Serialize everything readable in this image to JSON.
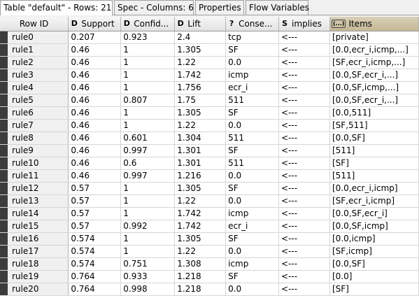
{
  "tabs": [
    {
      "label": "Table \"default\" - Rows: 21",
      "active": true
    },
    {
      "label": "Spec - Columns: 6",
      "active": false
    },
    {
      "label": "Properties",
      "active": false
    },
    {
      "label": "Flow Variables",
      "active": false
    }
  ],
  "columns": [
    {
      "label": "Row ID",
      "type_icon": "",
      "type_name": "row-id"
    },
    {
      "label": "Support",
      "type_icon": "D",
      "type_name": "double-type-icon"
    },
    {
      "label": "Confid...",
      "type_icon": "D",
      "type_name": "double-type-icon"
    },
    {
      "label": "Lift",
      "type_icon": "D",
      "type_name": "double-type-icon"
    },
    {
      "label": "Conse...",
      "type_icon": "?",
      "type_name": "unknown-type-icon"
    },
    {
      "label": "implies",
      "type_icon": "S",
      "type_name": "string-type-icon"
    },
    {
      "label": "Items",
      "type_icon": "(...)",
      "type_name": "list-type-icon"
    }
  ],
  "rows": [
    [
      "rule0",
      "0.207",
      "0.923",
      "2.4",
      "tcp",
      "<---",
      "[private]"
    ],
    [
      "rule1",
      "0.46",
      "1",
      "1.305",
      "SF",
      "<---",
      "[0.0,ecr_i,icmp,...]"
    ],
    [
      "rule2",
      "0.46",
      "1",
      "1.22",
      "0.0",
      "<---",
      "[SF,ecr_i,icmp,...]"
    ],
    [
      "rule3",
      "0.46",
      "1",
      "1.742",
      "icmp",
      "<---",
      "[0.0,SF,ecr_i,...]"
    ],
    [
      "rule4",
      "0.46",
      "1",
      "1.756",
      "ecr_i",
      "<---",
      "[0.0,SF,icmp,...]"
    ],
    [
      "rule5",
      "0.46",
      "0.807",
      "1.75",
      "511",
      "<---",
      "[0.0,SF,ecr_i,...]"
    ],
    [
      "rule6",
      "0.46",
      "1",
      "1.305",
      "SF",
      "<---",
      "[0.0,511]"
    ],
    [
      "rule7",
      "0.46",
      "1",
      "1.22",
      "0.0",
      "<---",
      "[SF,511]"
    ],
    [
      "rule8",
      "0.46",
      "0.601",
      "1.304",
      "511",
      "<---",
      "[0.0,SF]"
    ],
    [
      "rule9",
      "0.46",
      "0.997",
      "1.301",
      "SF",
      "<---",
      "[511]"
    ],
    [
      "rule10",
      "0.46",
      "0.6",
      "1.301",
      "511",
      "<---",
      "[SF]"
    ],
    [
      "rule11",
      "0.46",
      "0.997",
      "1.216",
      "0.0",
      "<---",
      "[511]"
    ],
    [
      "rule12",
      "0.57",
      "1",
      "1.305",
      "SF",
      "<---",
      "[0.0,ecr_i,icmp]"
    ],
    [
      "rule13",
      "0.57",
      "1",
      "1.22",
      "0.0",
      "<---",
      "[SF,ecr_i,icmp]"
    ],
    [
      "rule14",
      "0.57",
      "1",
      "1.742",
      "icmp",
      "<---",
      "[0.0,SF,ecr_i]"
    ],
    [
      "rule15",
      "0.57",
      "0.992",
      "1.742",
      "ecr_i",
      "<---",
      "[0.0,SF,icmp]"
    ],
    [
      "rule16",
      "0.574",
      "1",
      "1.305",
      "SF",
      "<---",
      "[0.0,icmp]"
    ],
    [
      "rule17",
      "0.574",
      "1",
      "1.22",
      "0.0",
      "<---",
      "[SF,icmp]"
    ],
    [
      "rule18",
      "0.574",
      "0.751",
      "1.308",
      "icmp",
      "<---",
      "[0.0,SF]"
    ],
    [
      "rule19",
      "0.764",
      "0.933",
      "1.218",
      "SF",
      "<---",
      "[0.0]"
    ],
    [
      "rule20",
      "0.764",
      "0.998",
      "1.218",
      "0.0",
      "<---",
      "[SF]"
    ]
  ]
}
